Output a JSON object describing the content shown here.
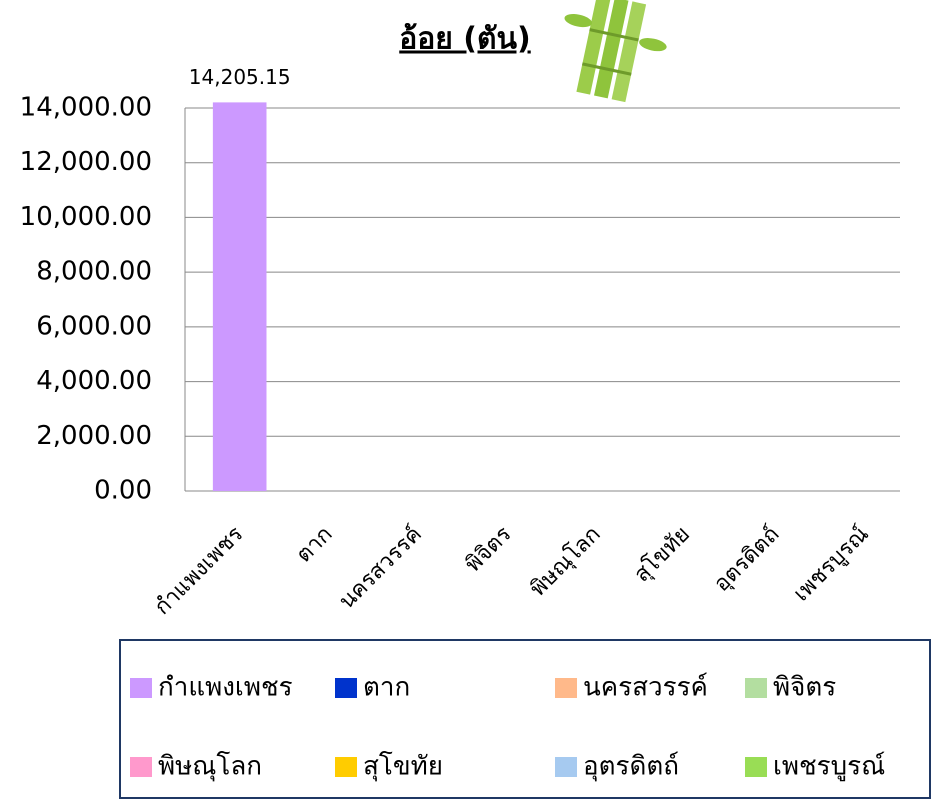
{
  "chart_data": {
    "type": "bar",
    "title": "อ้อย (ตัน)",
    "categories": [
      "กำแพงเพชร",
      "ตาก",
      "นครสวรรค์",
      "พิจิตร",
      "พิษณุโลก",
      "สุโขทัย",
      "อุตรดิตถ์",
      "เพชรบูรณ์"
    ],
    "values": [
      14205.15,
      0,
      0,
      0,
      0,
      0,
      0,
      0
    ],
    "value_labels": [
      "14,205.15",
      null,
      null,
      null,
      null,
      null,
      null,
      null
    ],
    "colors": [
      "#cc99ff",
      "#0033cc",
      "#ffb98a",
      "#b3dea0",
      "#ff99cc",
      "#ffcc00",
      "#a6caf0",
      "#99dd55"
    ],
    "ylim": [
      0,
      14000
    ],
    "yticks": [
      {
        "value": 0,
        "label": "0.00"
      },
      {
        "value": 2000,
        "label": "2,000.00"
      },
      {
        "value": 4000,
        "label": "4,000.00"
      },
      {
        "value": 6000,
        "label": "6,000.00"
      },
      {
        "value": 8000,
        "label": "8,000.00"
      },
      {
        "value": 10000,
        "label": "10,000.00"
      },
      {
        "value": 12000,
        "label": "12,000.00"
      },
      {
        "value": 14000,
        "label": "14,000.00"
      }
    ],
    "grid": true
  }
}
